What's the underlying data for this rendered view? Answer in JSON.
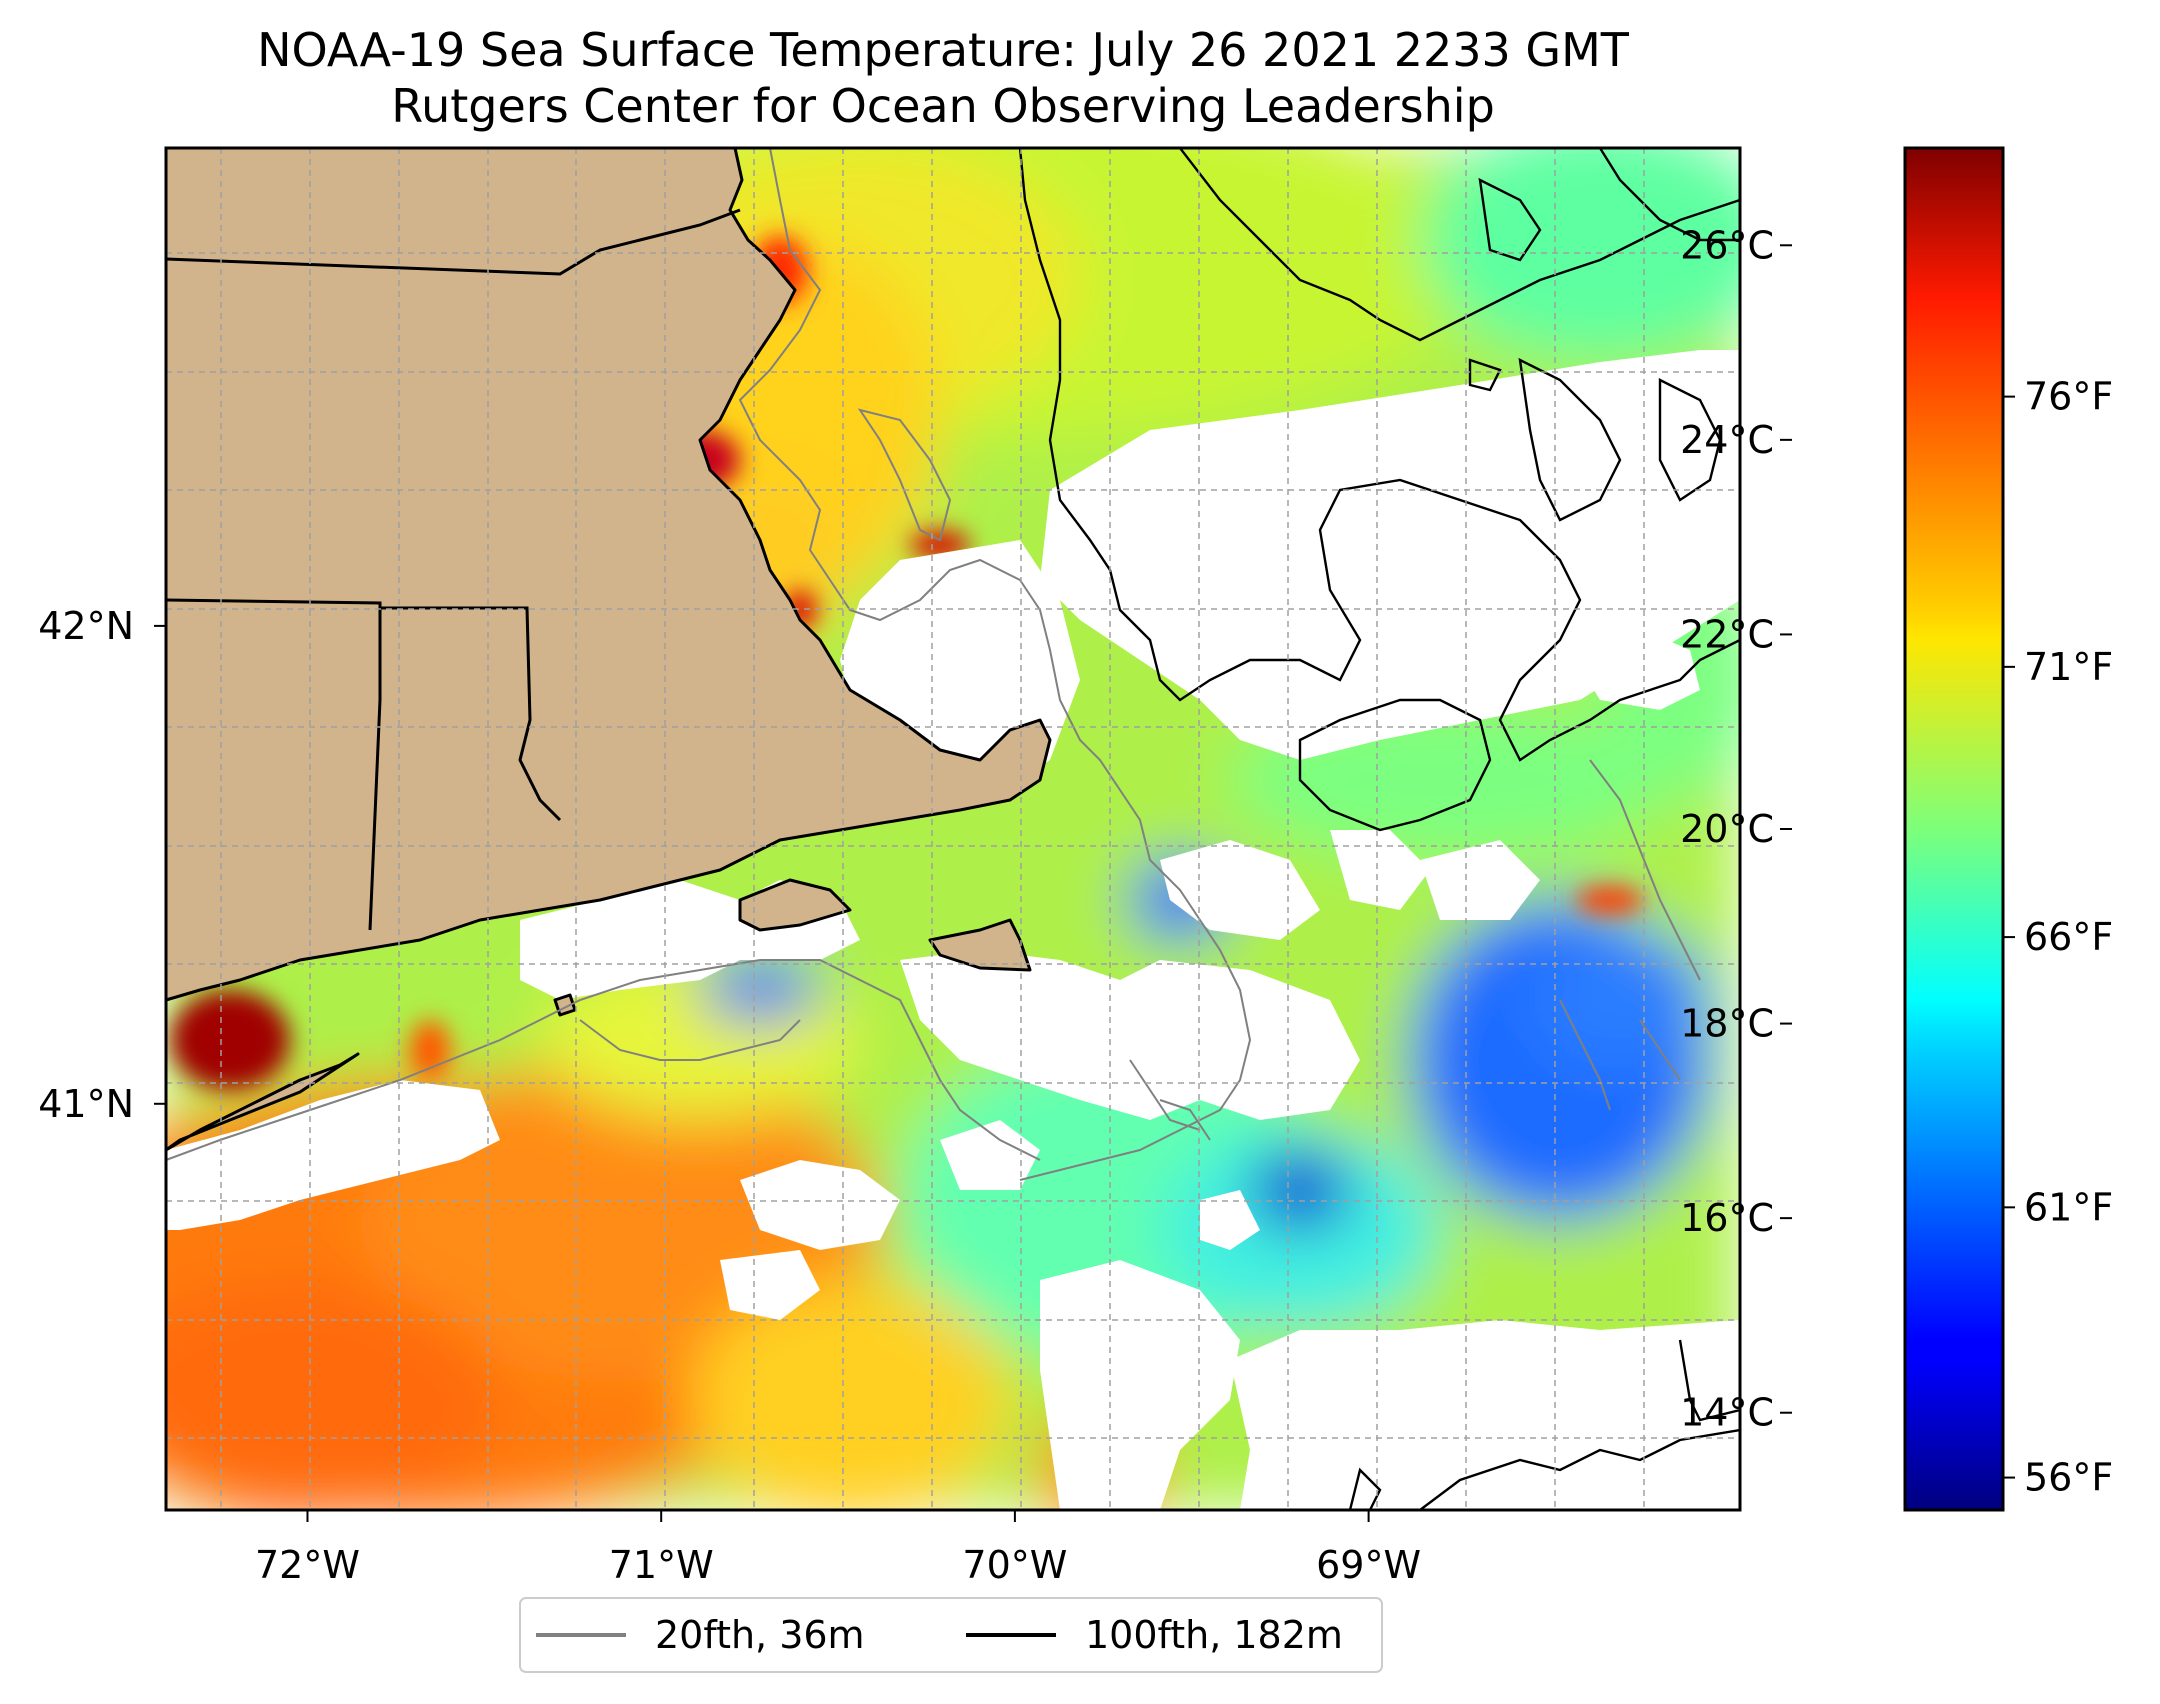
{
  "title": {
    "line1": "NOAA-19 Sea Surface Temperature: July 26 2021 2233 GMT",
    "line2": "Rutgers Center for Ocean Observing Leadership"
  },
  "map": {
    "lon_range": [
      -72.4,
      -67.95
    ],
    "lat_range": [
      40.15,
      43.0
    ],
    "lon_ticks": [
      {
        "value": -72,
        "label": "72°W"
      },
      {
        "value": -71,
        "label": "71°W"
      },
      {
        "value": -70,
        "label": "70°W"
      },
      {
        "value": -69,
        "label": "69°W"
      }
    ],
    "lat_ticks": [
      {
        "value": 42,
        "label": "42°N"
      },
      {
        "value": 41,
        "label": "41°N"
      }
    ],
    "colors": {
      "land": "#d2b48c",
      "shallow_isobath": "#808080",
      "deep_isobath": "#000000",
      "no_data": "#ffffff"
    }
  },
  "legend": {
    "items": [
      {
        "label": "20fth, 36m",
        "color": "#808080"
      },
      {
        "label": "100fth, 182m",
        "color": "#000000"
      }
    ]
  },
  "colorbar": {
    "celsius_range": [
      13,
      27
    ],
    "celsius_ticks": [
      {
        "value": 14,
        "label": "14°C"
      },
      {
        "value": 16,
        "label": "16°C"
      },
      {
        "value": 18,
        "label": "18°C"
      },
      {
        "value": 20,
        "label": "20°C"
      },
      {
        "value": 22,
        "label": "22°C"
      },
      {
        "value": 24,
        "label": "24°C"
      },
      {
        "value": 26,
        "label": "26°C"
      }
    ],
    "fahrenheit_ticks": [
      {
        "value": 56,
        "label": "56°F"
      },
      {
        "value": 61,
        "label": "61°F"
      },
      {
        "value": 66,
        "label": "66°F"
      },
      {
        "value": 71,
        "label": "71°F"
      },
      {
        "value": 76,
        "label": "76°F"
      }
    ]
  }
}
